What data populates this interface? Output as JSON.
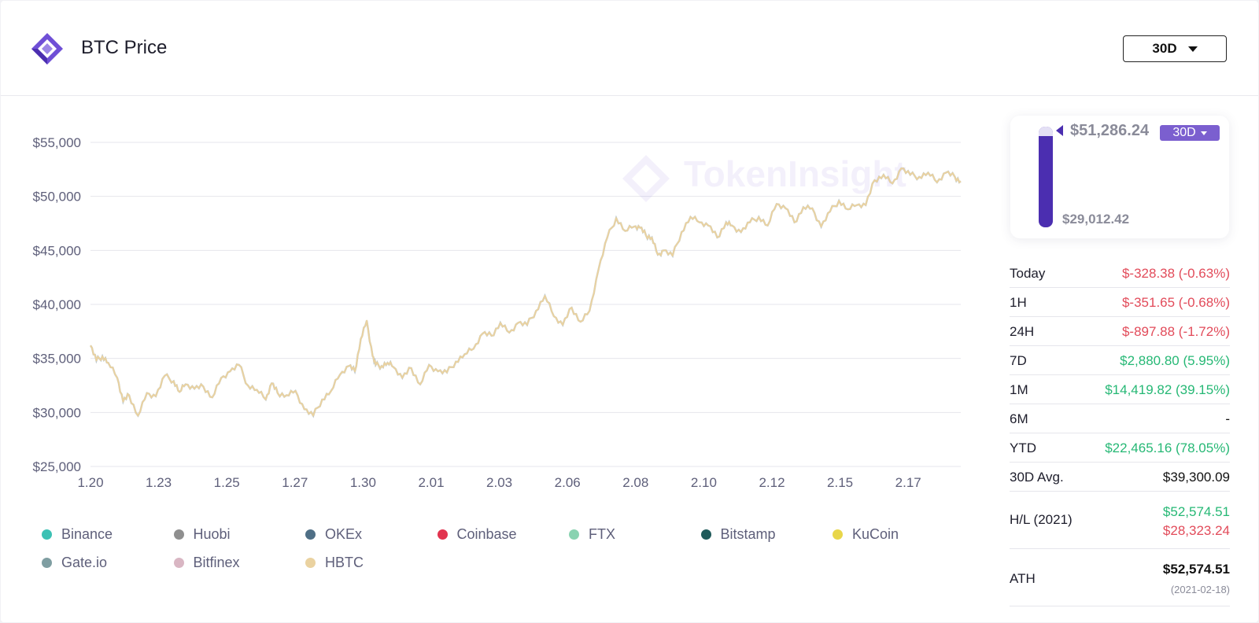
{
  "header": {
    "title": "BTC Price",
    "period_selector": "30D"
  },
  "watermark": "TokenInsight",
  "chart_data": {
    "type": "line",
    "title": "BTC Price",
    "xlabel": "",
    "ylabel": "",
    "x_ticks": [
      "1.20",
      "1.23",
      "1.25",
      "1.27",
      "1.30",
      "2.01",
      "2.03",
      "2.06",
      "2.08",
      "2.10",
      "2.12",
      "2.15",
      "2.17"
    ],
    "y_ticks": [
      "$55,000",
      "$50,000",
      "$45,000",
      "$40,000",
      "$35,000",
      "$30,000",
      "$25,000"
    ],
    "ylim": [
      25000,
      55000
    ],
    "xlim": [
      0,
      29.3
    ],
    "grid": true,
    "legend_position": "bottom",
    "series": [
      {
        "name": "Binance",
        "color": "#3cc1b4"
      },
      {
        "name": "Huobi",
        "color": "#8f8f8f"
      },
      {
        "name": "OKEx",
        "color": "#4f6f86"
      },
      {
        "name": "Coinbase",
        "color": "#e2344f"
      },
      {
        "name": "FTX",
        "color": "#89d3b1"
      },
      {
        "name": "Bitstamp",
        "color": "#1f5a5a"
      },
      {
        "name": "KuCoin",
        "color": "#e8d64a"
      },
      {
        "name": "Gate.io",
        "color": "#7f9ea2"
      },
      {
        "name": "Bitfinex",
        "color": "#d9b6c3"
      },
      {
        "name": "HBTC",
        "color": "#ead2a0"
      }
    ],
    "points_x": [
      0,
      0.2,
      0.4,
      0.6,
      0.9,
      1.1,
      1.3,
      1.6,
      1.9,
      2.2,
      2.5,
      2.8,
      3.0,
      3.2,
      3.5,
      3.8,
      4.1,
      4.4,
      4.7,
      5.0,
      5.3,
      5.6,
      5.9,
      6.1,
      6.3,
      6.6,
      6.9,
      7.2,
      7.5,
      7.8,
      8.1,
      8.4,
      8.7,
      8.9,
      9.1,
      9.3,
      9.5,
      9.6,
      9.8,
      10.0,
      10.2,
      10.5,
      10.8,
      11.1,
      11.4,
      11.7,
      12.0,
      12.3,
      12.6,
      12.9,
      13.2,
      13.5,
      13.8,
      14.1,
      14.4,
      14.7,
      15.0,
      15.3,
      15.6,
      15.9,
      16.2,
      16.5,
      16.8,
      17.1,
      17.4,
      17.7,
      18.0,
      18.3,
      18.5,
      18.7,
      18.9,
      19.1,
      19.3,
      19.6,
      19.9,
      20.2,
      20.5,
      20.8,
      21.1,
      21.4,
      21.6,
      21.9,
      22.2,
      22.5,
      22.8,
      23.1,
      23.4,
      23.7,
      24.0,
      24.3,
      24.6,
      24.9,
      25.2,
      25.5,
      25.8,
      26.1,
      26.4,
      26.7,
      27.0,
      27.3,
      27.6,
      27.9,
      28.2,
      28.5,
      28.8,
      29.1,
      29.3
    ],
    "values": [
      36200,
      34800,
      35200,
      34600,
      33200,
      31000,
      31600,
      29700,
      31800,
      31500,
      33400,
      32900,
      31900,
      32600,
      32200,
      32400,
      31400,
      33200,
      33800,
      34400,
      32500,
      32100,
      31200,
      32700,
      31800,
      31600,
      32000,
      30300,
      29700,
      31200,
      32000,
      33500,
      34300,
      33800,
      36800,
      38500,
      35200,
      34400,
      34300,
      34600,
      34200,
      33200,
      34100,
      32600,
      34400,
      33800,
      33700,
      34700,
      35400,
      35900,
      37300,
      37100,
      38300,
      37400,
      38300,
      38100,
      39400,
      40800,
      38900,
      38100,
      39700,
      38400,
      39400,
      43200,
      46200,
      48000,
      46800,
      47200,
      47100,
      46400,
      46200,
      44600,
      45000,
      44500,
      46700,
      48100,
      47600,
      47300,
      46200,
      47600,
      47300,
      46700,
      47600,
      48100,
      47300,
      49300,
      48900,
      47600,
      49000,
      48900,
      47200,
      48600,
      49600,
      48800,
      49200,
      49200,
      51500,
      52000,
      51200,
      52600,
      52000,
      51800,
      52200,
      51300,
      52200,
      51800,
      51400
    ]
  },
  "range": {
    "high": "$51,286.24",
    "low": "$29,012.42",
    "period": "30D",
    "current_fraction": 0.91
  },
  "stats": [
    {
      "label": "Today",
      "value": "$-328.38 (-0.63%)",
      "tone": "neg"
    },
    {
      "label": "1H",
      "value": "$-351.65 (-0.68%)",
      "tone": "neg"
    },
    {
      "label": "24H",
      "value": "$-897.88 (-1.72%)",
      "tone": "neg"
    },
    {
      "label": "7D",
      "value": "$2,880.80 (5.95%)",
      "tone": "pos"
    },
    {
      "label": "1M",
      "value": "$14,419.82 (39.15%)",
      "tone": "pos"
    },
    {
      "label": "6M",
      "value": "-",
      "tone": "neu"
    },
    {
      "label": "YTD",
      "value": "$22,465.16 (78.05%)",
      "tone": "pos"
    },
    {
      "label": "30D Avg.",
      "value": "$39,300.09",
      "tone": "neu"
    }
  ],
  "hl": {
    "label": "H/L (2021)",
    "high": "$52,574.51",
    "low": "$28,323.24"
  },
  "ath": {
    "label": "ATH",
    "value": "$52,574.51",
    "date": "(2021-02-18)"
  }
}
